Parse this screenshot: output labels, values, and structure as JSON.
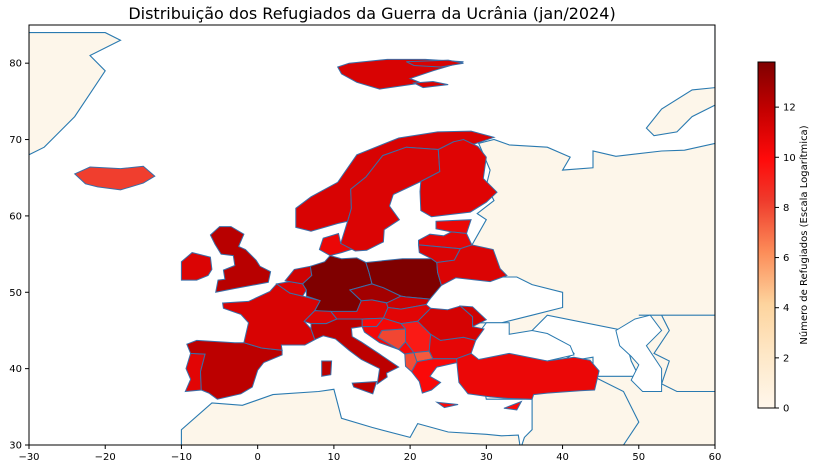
{
  "chart_data": {
    "type": "choropleth",
    "title": "Distribuição dos Refugiados da Guerra da Ucrânia (jan/2024)",
    "xlabel": "",
    "ylabel": "",
    "xlim": [
      -30,
      60
    ],
    "ylim": [
      30,
      85
    ],
    "x_ticks": [
      -30,
      -20,
      -10,
      0,
      10,
      20,
      30,
      40,
      50,
      60
    ],
    "y_ticks": [
      30,
      40,
      50,
      60,
      70,
      80
    ],
    "colorbar": {
      "label": "Número de Refugiados (Escala Logarítmica)",
      "range": [
        0,
        13.8
      ],
      "ticks": [
        0,
        2,
        4,
        6,
        8,
        10,
        12
      ],
      "colormap": "OrRd",
      "stops": [
        "#fff7ec",
        "#fdd49e",
        "#fc8d59",
        "#e34a33",
        "#ff0000",
        "#b30000",
        "#7f0000"
      ]
    },
    "land_color": "#fdf6ea",
    "coast_color": "#2a7ab0",
    "regions": [
      {
        "name": "Germany",
        "value": 13.8
      },
      {
        "name": "Poland",
        "value": 13.8
      },
      {
        "name": "Czechia",
        "value": 12.8
      },
      {
        "name": "United Kingdom",
        "value": 12.2
      },
      {
        "name": "Spain",
        "value": 12.1
      },
      {
        "name": "Italy",
        "value": 12.1
      },
      {
        "name": "France",
        "value": 11.2
      },
      {
        "name": "Ireland",
        "value": 11.1
      },
      {
        "name": "Portugal",
        "value": 10.9
      },
      {
        "name": "Netherlands",
        "value": 11.5
      },
      {
        "name": "Belgium",
        "value": 11.1
      },
      {
        "name": "Austria",
        "value": 11.2
      },
      {
        "name": "Switzerland",
        "value": 11.1
      },
      {
        "name": "Slovakia",
        "value": 11.6
      },
      {
        "name": "Hungary",
        "value": 10.9
      },
      {
        "name": "Romania",
        "value": 11.3
      },
      {
        "name": "Moldova",
        "value": 11.5
      },
      {
        "name": "Bulgaria",
        "value": 10.8
      },
      {
        "name": "Greece",
        "value": 10.1
      },
      {
        "name": "Turkey",
        "value": 10.6
      },
      {
        "name": "Norway",
        "value": 11.2
      },
      {
        "name": "Sweden",
        "value": 11.1
      },
      {
        "name": "Finland",
        "value": 11.0
      },
      {
        "name": "Denmark",
        "value": 10.6
      },
      {
        "name": "Lithuania",
        "value": 11.1
      },
      {
        "name": "Latvia",
        "value": 10.8
      },
      {
        "name": "Estonia",
        "value": 10.6
      },
      {
        "name": "Belarus",
        "value": 11.1
      },
      {
        "name": "Croatia",
        "value": 10.3
      },
      {
        "name": "Slovenia",
        "value": 10.1
      },
      {
        "name": "Bosnia and Herzegovina",
        "value": 8.0
      },
      {
        "name": "Serbia",
        "value": 9.4
      },
      {
        "name": "Montenegro",
        "value": 10.2
      },
      {
        "name": "North Macedonia",
        "value": 7.5
      },
      {
        "name": "Albania",
        "value": 7.8
      },
      {
        "name": "Cyprus",
        "value": 10.0
      },
      {
        "name": "Iceland",
        "value": 8.2
      },
      {
        "name": "Svalbard",
        "value": 11.2
      }
    ]
  }
}
